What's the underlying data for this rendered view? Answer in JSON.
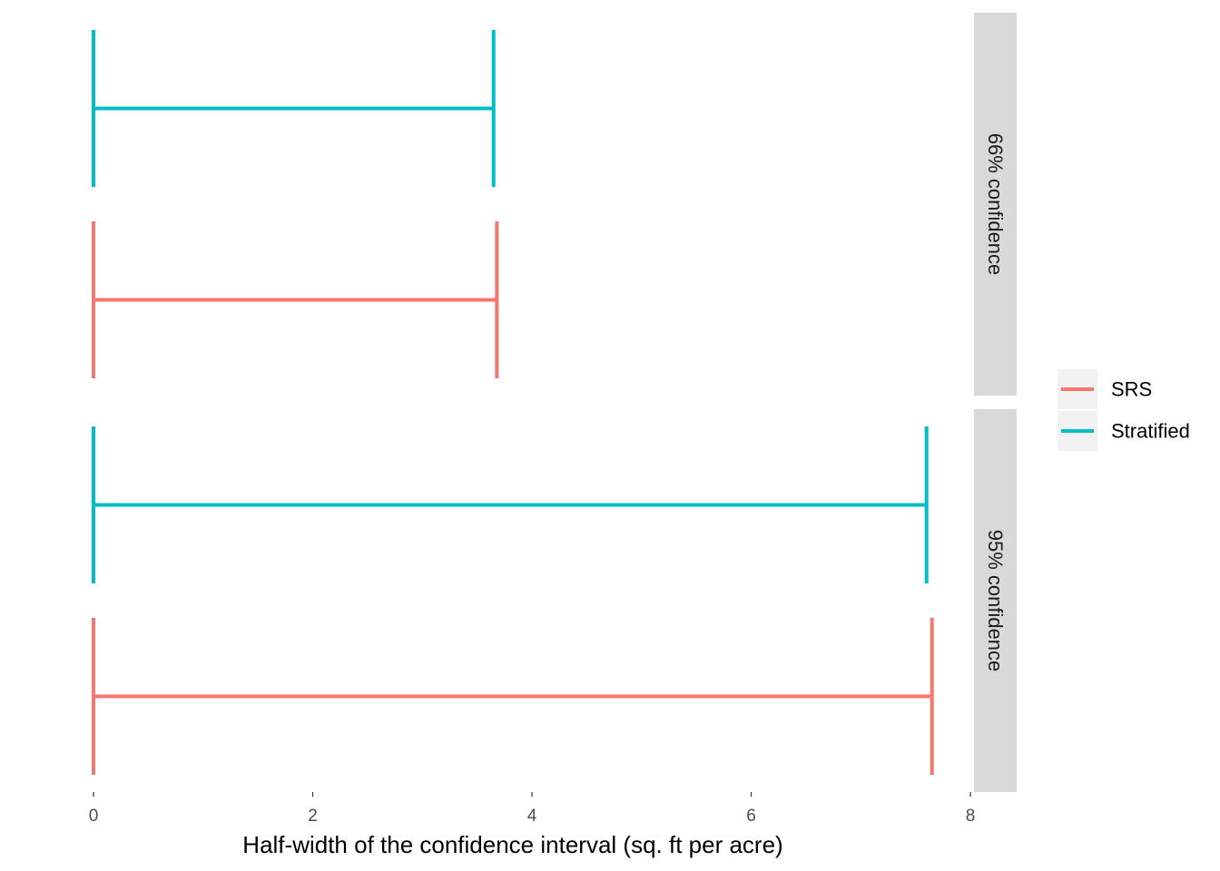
{
  "chart_data": {
    "type": "errorbar",
    "orientation": "horizontal",
    "xlabel": "Half-width of the confidence interval (sq. ft per acre)",
    "xlim": [
      0,
      8
    ],
    "x_ticks": [
      0,
      2,
      4,
      6,
      8
    ],
    "grid": false,
    "legend_position": "right",
    "series": [
      {
        "name": "SRS",
        "color": "#F8766D"
      },
      {
        "name": "Stratified",
        "color": "#00BFC4"
      }
    ],
    "panels": [
      {
        "strip_label": "66% confidence",
        "bars": [
          {
            "series": "Stratified",
            "xmin": 0,
            "xmax": 3.65
          },
          {
            "series": "SRS",
            "xmin": 0,
            "xmax": 3.68
          }
        ]
      },
      {
        "strip_label": "95% confidence",
        "bars": [
          {
            "series": "Stratified",
            "xmin": 0,
            "xmax": 7.6
          },
          {
            "series": "SRS",
            "xmin": 0,
            "xmax": 7.65
          }
        ]
      }
    ]
  }
}
